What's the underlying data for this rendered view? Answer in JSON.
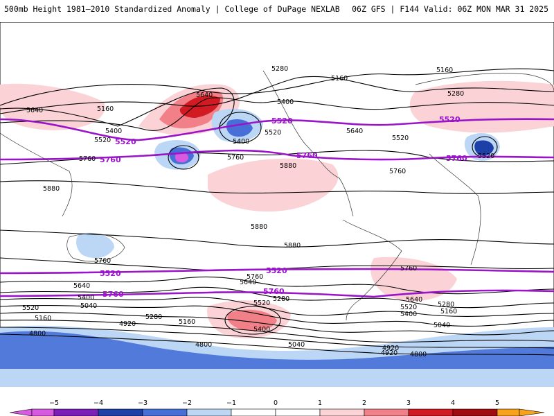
{
  "header": {
    "left": "500mb Height 1981–2010 Standardized Anomaly | College of DuPage NEXLAB",
    "right": "06Z GFS | F144 Valid: 06Z MON MAR 31 2025"
  },
  "colors": {
    "purple_contour": "#9a14c8",
    "neg5": "#d85ae0",
    "neg4": "#7a1fb8",
    "neg3": "#1d3fa8",
    "neg2": "#4670d8",
    "neg1": "#bcd6f6",
    "pos1": "#fbd2d6",
    "pos2": "#f28088",
    "pos3": "#d11a22",
    "pos4": "#a00c10",
    "pos5": "#f7a21a"
  },
  "colorbar": {
    "ticks": [
      "−5",
      "−4",
      "−3",
      "−2",
      "−1",
      "0",
      "1",
      "2",
      "3",
      "4",
      "5"
    ]
  },
  "contour_labels": {
    "black": [
      "5280",
      "5160",
      "5640",
      "5160",
      "5400",
      "5520",
      "5760",
      "5880",
      "5400",
      "5520",
      "5640",
      "5760",
      "5880",
      "5400",
      "5280",
      "5160",
      "5520",
      "5640",
      "5760",
      "5880",
      "5520",
      "5760",
      "5880",
      "5760",
      "5640",
      "5520",
      "5400",
      "5280",
      "5160",
      "5040",
      "4920",
      "4800",
      "5640",
      "5520",
      "5400",
      "5280",
      "5160",
      "5040",
      "4920",
      "4800",
      "5760",
      "5640",
      "5520",
      "5400",
      "5280",
      "5160",
      "5040",
      "4920",
      "4800"
    ],
    "purple": [
      "5520",
      "5760",
      "5520",
      "5760",
      "5520",
      "5760",
      "5520",
      "5760",
      "5520",
      "5760"
    ]
  }
}
